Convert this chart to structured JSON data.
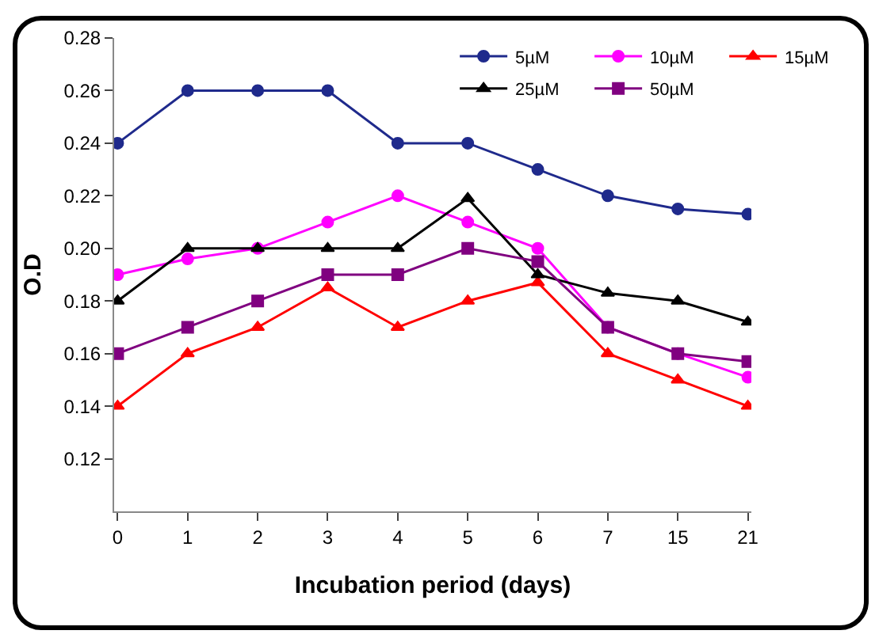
{
  "chart_data": {
    "type": "line",
    "xlabel": "Incubation period (days)",
    "ylabel": "O.D",
    "categories": [
      "0",
      "1",
      "2",
      "3",
      "4",
      "5",
      "6",
      "7",
      "15",
      "21"
    ],
    "ylim": [
      0.1,
      0.28
    ],
    "yticks": [
      0.12,
      0.14,
      0.16,
      0.18,
      {
        "value": 0.2,
        "label": "0.20"
      },
      0.22,
      0.24,
      0.26,
      0.28
    ],
    "grid": false,
    "legend": "top right",
    "line_style": "solid",
    "series": [
      {
        "name": "5µM",
        "color": "#1f2a8c",
        "marker": "circle",
        "values": [
          0.24,
          0.26,
          0.26,
          0.26,
          0.24,
          0.24,
          0.23,
          0.22,
          0.215,
          0.213
        ]
      },
      {
        "name": "10µM",
        "color": "#ff00ff",
        "marker": "circle",
        "values": [
          0.19,
          0.196,
          0.2,
          0.21,
          0.22,
          0.21,
          0.2,
          0.17,
          0.16,
          0.151
        ]
      },
      {
        "name": "15µM",
        "color": "#ff0000",
        "marker": "triangle",
        "values": [
          0.14,
          0.16,
          0.17,
          0.185,
          0.17,
          0.18,
          0.187,
          0.16,
          0.15,
          0.14
        ]
      },
      {
        "name": "25µM",
        "color": "#000000",
        "marker": "triangle",
        "values": [
          0.18,
          0.2,
          0.2,
          0.2,
          0.2,
          0.219,
          0.19,
          0.183,
          0.18,
          0.172
        ]
      },
      {
        "name": "50µM",
        "color": "#800080",
        "marker": "square",
        "values": [
          0.16,
          0.17,
          0.18,
          0.19,
          0.19,
          0.2,
          0.195,
          0.17,
          0.16,
          0.157
        ]
      }
    ]
  }
}
